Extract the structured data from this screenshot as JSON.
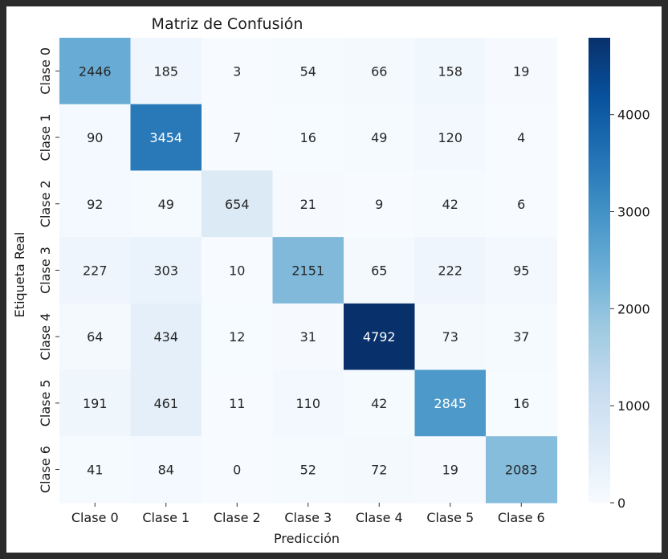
{
  "chart_data": {
    "type": "heatmap",
    "title": "Matriz de Confusión",
    "xlabel": "Predicción",
    "ylabel": "Etiqueta Real",
    "x_categories": [
      "Clase 0",
      "Clase 1",
      "Clase 2",
      "Clase 3",
      "Clase 4",
      "Clase 5",
      "Clase 6"
    ],
    "y_categories": [
      "Clase 0",
      "Clase 1",
      "Clase 2",
      "Clase 3",
      "Clase 4",
      "Clase 5",
      "Clase 6"
    ],
    "values": [
      [
        2446,
        185,
        3,
        54,
        66,
        158,
        19
      ],
      [
        90,
        3454,
        7,
        16,
        49,
        120,
        4
      ],
      [
        92,
        49,
        654,
        21,
        9,
        42,
        6
      ],
      [
        227,
        303,
        10,
        2151,
        65,
        222,
        95
      ],
      [
        64,
        434,
        12,
        31,
        4792,
        73,
        37
      ],
      [
        191,
        461,
        11,
        110,
        42,
        2845,
        16
      ],
      [
        41,
        84,
        0,
        52,
        72,
        19,
        2083
      ]
    ],
    "colormap": "Blues",
    "colorbar": {
      "range": [
        0,
        4792
      ],
      "ticks": [
        0,
        1000,
        2000,
        3000,
        4000
      ]
    }
  }
}
